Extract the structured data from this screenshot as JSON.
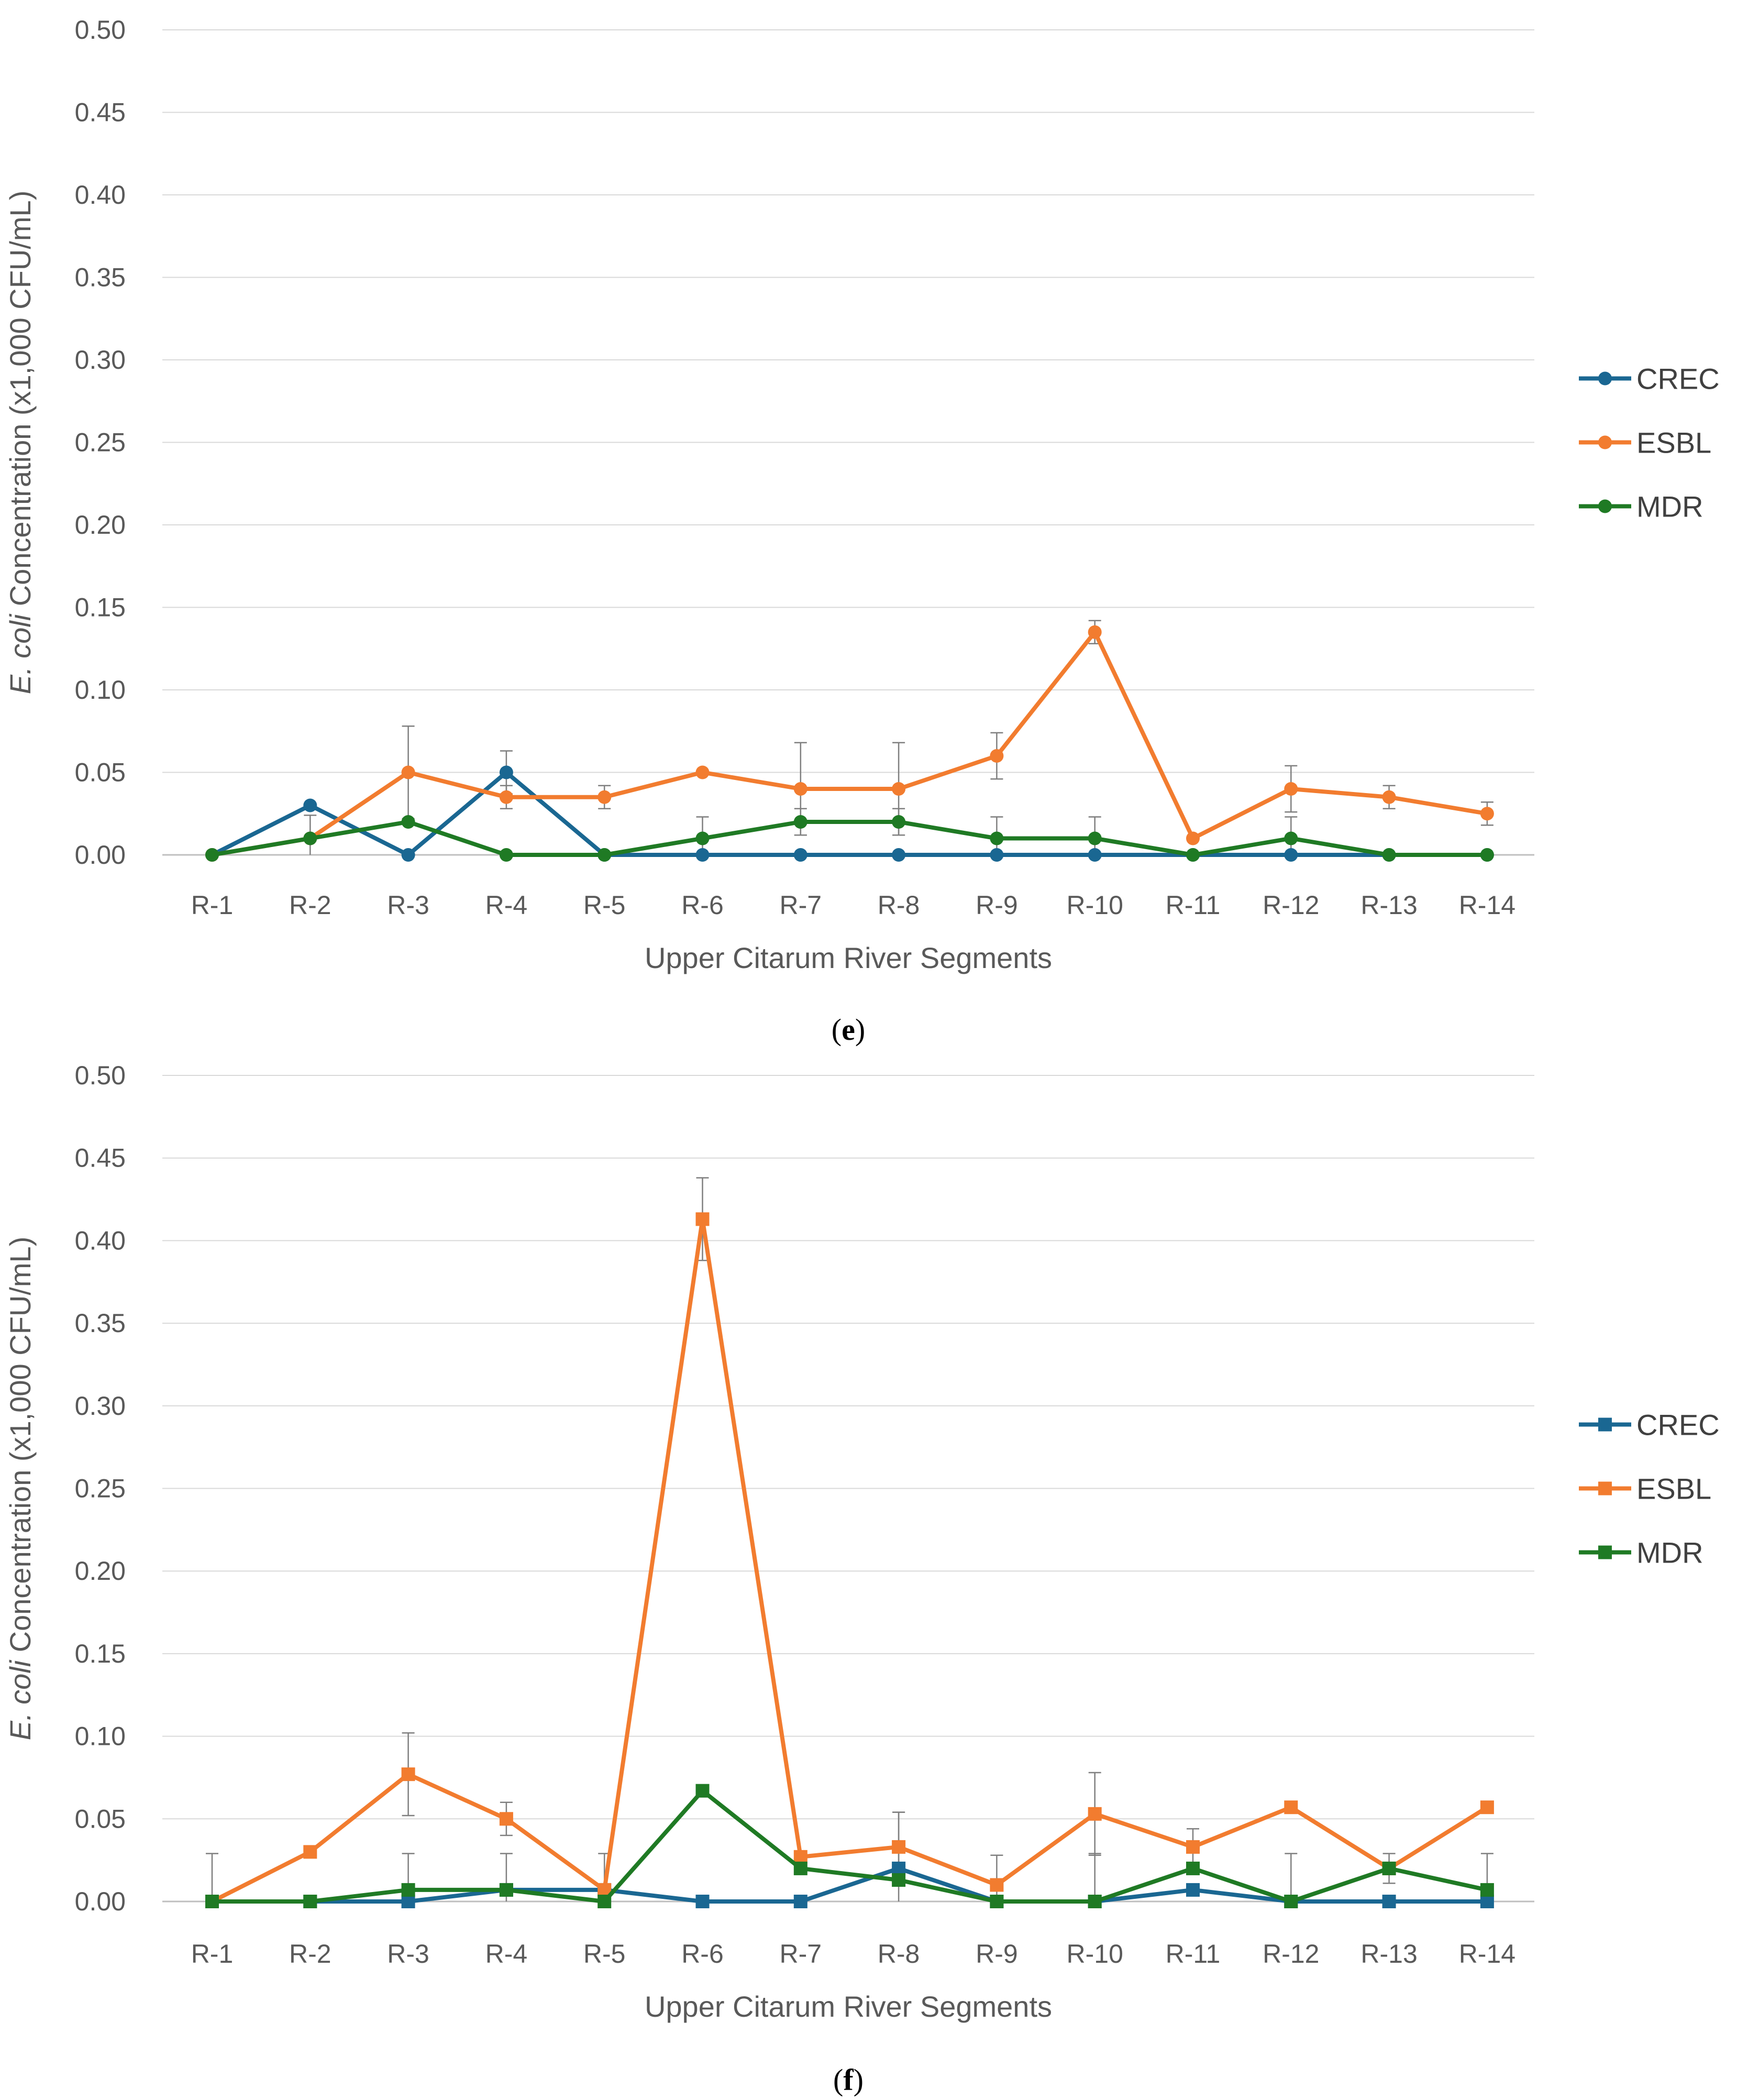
{
  "chart_data": [
    {
      "panel_label": "e",
      "type": "line",
      "marker": "circle",
      "xlabel": "Upper Citarum River Segments",
      "ylabel": {
        "italic": "E. coli",
        "rest": " Concentration (x1,000 CFU/mL)"
      },
      "ylim": [
        0,
        0.5
      ],
      "yticks": [
        "0.00",
        "0.05",
        "0.10",
        "0.15",
        "0.20",
        "0.25",
        "0.30",
        "0.35",
        "0.40",
        "0.45",
        "0.50"
      ],
      "categories": [
        "R-1",
        "R-2",
        "R-3",
        "R-4",
        "R-5",
        "R-6",
        "R-7",
        "R-8",
        "R-9",
        "R-10",
        "R-11",
        "R-12",
        "R-13",
        "R-14"
      ],
      "legend_position": "right",
      "grid": true,
      "series": [
        {
          "name": "CREC",
          "color": "#1a6792",
          "values": [
            0,
            0.03,
            0,
            0.05,
            0,
            0,
            0,
            0,
            0,
            0,
            0,
            0,
            0,
            0
          ],
          "errors": [
            0,
            0,
            0,
            0.013,
            0,
            0,
            0,
            0,
            0,
            0,
            0,
            0,
            0,
            0
          ]
        },
        {
          "name": "ESBL",
          "color": "#f27c2f",
          "values": [
            0,
            0.01,
            0.05,
            0.035,
            0.035,
            0.05,
            0.04,
            0.04,
            0.06,
            0.135,
            0.01,
            0.04,
            0.035,
            0.025
          ],
          "errors": [
            0,
            0,
            0.028,
            0.007,
            0.007,
            0,
            0.028,
            0.028,
            0.014,
            0.007,
            0,
            0.014,
            0.007,
            0.007
          ]
        },
        {
          "name": "MDR",
          "color": "#1f7a24",
          "values": [
            0,
            0.01,
            0.02,
            0,
            0,
            0.01,
            0.02,
            0.02,
            0.01,
            0.01,
            0,
            0.01,
            0,
            0
          ],
          "errors": [
            0,
            0.014,
            0,
            0,
            0,
            0.013,
            0.008,
            0.008,
            0.013,
            0.013,
            0,
            0.013,
            0,
            0
          ]
        }
      ]
    },
    {
      "panel_label": "f",
      "type": "line",
      "marker": "square",
      "xlabel": "Upper Citarum River Segments",
      "ylabel": {
        "italic": "E. coli",
        "rest": " Concentration (x1,000 CFU/mL)"
      },
      "ylim": [
        0,
        0.5
      ],
      "yticks": [
        "0.00",
        "0.05",
        "0.10",
        "0.15",
        "0.20",
        "0.25",
        "0.30",
        "0.35",
        "0.40",
        "0.45",
        "0.50"
      ],
      "categories": [
        "R-1",
        "R-2",
        "R-3",
        "R-4",
        "R-5",
        "R-6",
        "R-7",
        "R-8",
        "R-9",
        "R-10",
        "R-11",
        "R-12",
        "R-13",
        "R-14"
      ],
      "legend_position": "right",
      "grid": true,
      "series": [
        {
          "name": "CREC",
          "color": "#1a6792",
          "values": [
            0,
            0,
            0,
            0.007,
            0.007,
            0,
            0,
            0.02,
            0,
            0,
            0.007,
            0,
            0,
            0
          ],
          "errors": [
            0,
            0,
            0,
            0,
            0,
            0,
            0,
            0.034,
            0,
            0,
            0,
            0,
            0,
            0
          ]
        },
        {
          "name": "ESBL",
          "color": "#f27c2f",
          "values": [
            0,
            0.03,
            0.077,
            0.05,
            0.007,
            0.413,
            0.027,
            0.033,
            0.01,
            0.053,
            0.033,
            0.057,
            0.02,
            0.057
          ],
          "errors": [
            0.029,
            0,
            0.025,
            0.01,
            0.022,
            0.025,
            0.003,
            0.021,
            0.018,
            0.025,
            0.011,
            0.003,
            0.009,
            0.003
          ]
        },
        {
          "name": "MDR",
          "color": "#1f7a24",
          "values": [
            0,
            0,
            0.007,
            0.007,
            0,
            0.067,
            0.02,
            0.013,
            0,
            0,
            0.02,
            0,
            0.02,
            0.007
          ],
          "errors": [
            0,
            0,
            0.022,
            0.022,
            0,
            0,
            0,
            0,
            0,
            0.029,
            0,
            0.029,
            0,
            0.022
          ]
        }
      ]
    }
  ]
}
